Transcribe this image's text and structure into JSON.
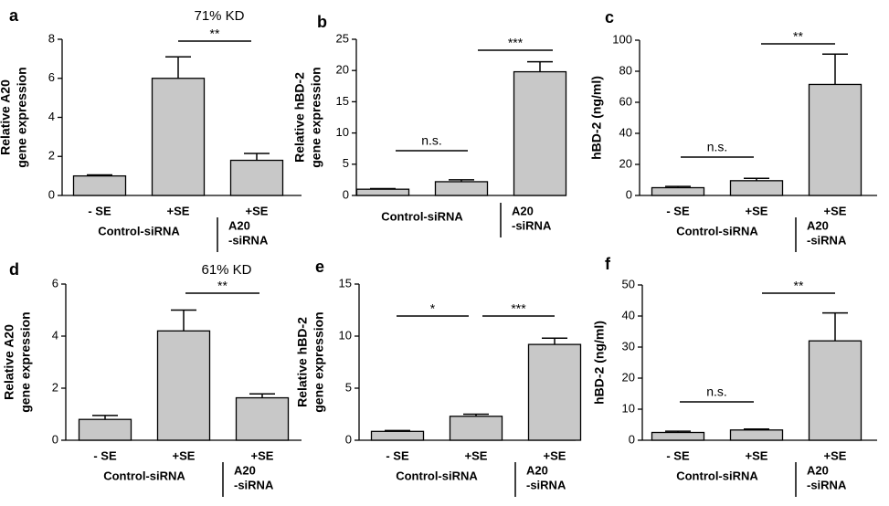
{
  "chart_data": [
    {
      "type": "bar",
      "panel": "a",
      "annotation": "71% KD",
      "ylabel": [
        "Relative A20",
        "gene expression"
      ],
      "categories": [
        "- SE",
        "+SE",
        "+SE"
      ],
      "groups": [
        "Control-siRNA",
        [
          "A20",
          "-siRNA"
        ]
      ],
      "values": [
        1.0,
        6.0,
        1.8
      ],
      "errors": [
        0.05,
        1.1,
        0.35
      ],
      "color": "#c8c8c8",
      "ylim": [
        0,
        8
      ],
      "yticks": [
        0,
        2,
        4,
        6,
        8
      ],
      "significance": [
        "**"
      ]
    },
    {
      "type": "bar",
      "panel": "b",
      "ylabel": [
        "Relative hBD-2",
        "gene expression"
      ],
      "categories": [
        null,
        null,
        null
      ],
      "groups": [
        "Control-siRNA",
        [
          "A20",
          "-siRNA"
        ]
      ],
      "values": [
        1.0,
        2.2,
        19.8
      ],
      "errors": [
        0.1,
        0.3,
        1.6
      ],
      "color": "#c8c8c8",
      "ylim": [
        0,
        25
      ],
      "yticks": [
        0,
        5,
        10,
        15,
        20,
        25
      ],
      "significance": [
        "n.s.",
        "***"
      ]
    },
    {
      "type": "bar",
      "panel": "c",
      "ylabel": [
        "hBD-2 (ng/ml)"
      ],
      "categories": [
        "- SE",
        "+SE",
        "+SE"
      ],
      "groups": [
        "Control-siRNA",
        [
          "A20",
          "-siRNA"
        ]
      ],
      "values": [
        5,
        9.5,
        71.5
      ],
      "errors": [
        0.8,
        1.5,
        19.5
      ],
      "color": "#c8c8c8",
      "ylim": [
        0,
        100
      ],
      "yticks": [
        0,
        20,
        40,
        60,
        80,
        100
      ],
      "significance": [
        "n.s.",
        "**"
      ]
    },
    {
      "type": "bar",
      "panel": "d",
      "annotation": "61% KD",
      "ylabel": [
        "Relative A20",
        "gene expression"
      ],
      "categories": [
        "- SE",
        "+SE",
        "+SE"
      ],
      "groups": [
        "Control-siRNA",
        [
          "A20",
          "-siRNA"
        ]
      ],
      "values": [
        0.8,
        4.2,
        1.63
      ],
      "errors": [
        0.15,
        0.8,
        0.15
      ],
      "color": "#c8c8c8",
      "ylim": [
        0,
        6
      ],
      "yticks": [
        0,
        2,
        4,
        6
      ],
      "significance": [
        "**"
      ]
    },
    {
      "type": "bar",
      "panel": "e",
      "ylabel": [
        "Relative hBD-2",
        "gene expression"
      ],
      "categories": [
        "- SE",
        "+SE",
        "+SE"
      ],
      "groups": [
        "Control-siRNA",
        [
          "A20",
          "-siRNA"
        ]
      ],
      "values": [
        0.85,
        2.3,
        9.2
      ],
      "errors": [
        0.08,
        0.2,
        0.6
      ],
      "color": "#c8c8c8",
      "ylim": [
        0,
        15
      ],
      "yticks": [
        0,
        5,
        10,
        15
      ],
      "significance": [
        "*",
        "***"
      ]
    },
    {
      "type": "bar",
      "panel": "f",
      "ylabel": [
        "hBD-2 (ng/ml)"
      ],
      "categories": [
        "- SE",
        "+SE",
        "+SE"
      ],
      "groups": [
        "Control-siRNA",
        [
          "A20",
          "-siRNA"
        ]
      ],
      "values": [
        2.5,
        3.3,
        32
      ],
      "errors": [
        0.4,
        0.3,
        9
      ],
      "color": "#c8c8c8",
      "ylim": [
        0,
        50
      ],
      "yticks": [
        0,
        10,
        20,
        30,
        40,
        50
      ],
      "significance": [
        "n.s.",
        "**"
      ]
    }
  ]
}
